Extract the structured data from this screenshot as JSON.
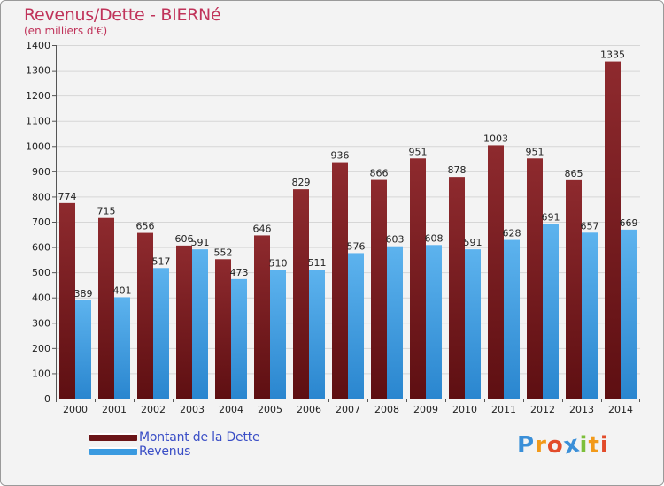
{
  "header": {
    "title": "Revenus/Dette - BIERNé",
    "subtitle": "(en milliers d'€)"
  },
  "colors": {
    "dette": "#7a1e22",
    "dette_light": "#9a2c30",
    "revenus": "#3a9ae0",
    "revenus_light": "#5db3ee",
    "title": "#c0335a",
    "legend_text": "#3a4ec6"
  },
  "legend": [
    {
      "label": "Montant de la Dette",
      "color": "#6b1518"
    },
    {
      "label": "Revenus",
      "color": "#3a9ae0"
    }
  ],
  "logo": {
    "text": "Proxiti",
    "letters": [
      {
        "ch": "P",
        "color": "#3a8fd8"
      },
      {
        "ch": "r",
        "color": "#f29a1a"
      },
      {
        "ch": "o",
        "color": "#e24b2a"
      },
      {
        "ch": "x",
        "color": "#3a8fd8"
      },
      {
        "ch": "i",
        "color": "#7cbf3a"
      },
      {
        "ch": "t",
        "color": "#f29a1a"
      },
      {
        "ch": "i",
        "color": "#e24b2a"
      }
    ]
  },
  "chart_data": {
    "type": "bar",
    "title": "Revenus/Dette - BIERNé",
    "subtitle": "(en milliers d'€)",
    "categories": [
      "2000",
      "2001",
      "2002",
      "2003",
      "2004",
      "2005",
      "2006",
      "2007",
      "2008",
      "2009",
      "2010",
      "2011",
      "2012",
      "2013",
      "2014"
    ],
    "series": [
      {
        "name": "Montant de la Dette",
        "values": [
          774,
          715,
          656,
          606,
          552,
          646,
          829,
          936,
          866,
          951,
          878,
          1003,
          951,
          865,
          1335
        ]
      },
      {
        "name": "Revenus",
        "values": [
          389,
          401,
          517,
          591,
          473,
          510,
          511,
          576,
          603,
          608,
          591,
          628,
          691,
          657,
          669
        ]
      }
    ],
    "ylim": [
      0,
      1400
    ],
    "yticks": [
      0,
      100,
      200,
      300,
      400,
      500,
      600,
      700,
      800,
      900,
      1000,
      1100,
      1200,
      1300,
      1400
    ],
    "grid": true,
    "legend_position": "bottom-left"
  }
}
